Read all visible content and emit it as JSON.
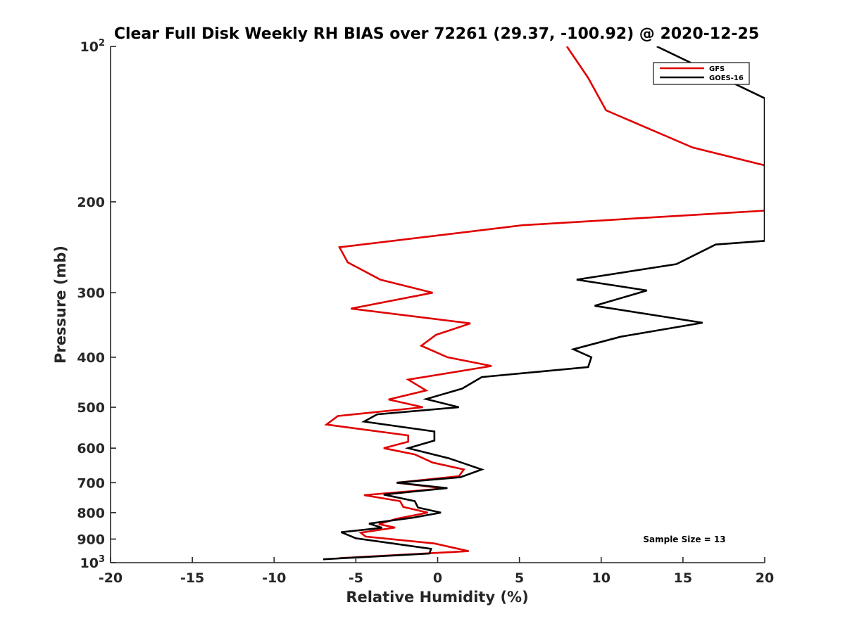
{
  "chart_data": {
    "type": "line",
    "title": "Clear Full Disk Weekly RH BIAS over 72261 (29.37, -100.92) @ 2020-12-25",
    "xlabel": "Relative Humidity (%)",
    "ylabel": "Pressure (mb)",
    "xlim": [
      -20,
      20
    ],
    "ylim": [
      100,
      1000
    ],
    "y_scale": "log",
    "y_reversed": true,
    "grid": false,
    "legend_position": "top-right",
    "x_ticks": [
      {
        "value": -20,
        "label": "-20"
      },
      {
        "value": -15,
        "label": "-15"
      },
      {
        "value": -10,
        "label": "-10"
      },
      {
        "value": -5,
        "label": "-5"
      },
      {
        "value": 0,
        "label": "0"
      },
      {
        "value": 5,
        "label": "5"
      },
      {
        "value": 10,
        "label": "10"
      },
      {
        "value": 15,
        "label": "15"
      },
      {
        "value": 20,
        "label": "20"
      }
    ],
    "y_ticks": [
      {
        "value": 100,
        "base": "10",
        "exp": "2"
      },
      {
        "value": 200,
        "base": "200",
        "exp": ""
      },
      {
        "value": 300,
        "base": "300",
        "exp": ""
      },
      {
        "value": 400,
        "base": "400",
        "exp": ""
      },
      {
        "value": 500,
        "base": "500",
        "exp": ""
      },
      {
        "value": 600,
        "base": "600",
        "exp": ""
      },
      {
        "value": 700,
        "base": "700",
        "exp": ""
      },
      {
        "value": 800,
        "base": "800",
        "exp": ""
      },
      {
        "value": 900,
        "base": "900",
        "exp": ""
      },
      {
        "value": 1000,
        "base": "10",
        "exp": "3"
      }
    ],
    "series": [
      {
        "name": "GFS",
        "color": "#e00000",
        "points": [
          [
            7.9,
            100
          ],
          [
            9.2,
            115
          ],
          [
            10.3,
            133
          ],
          [
            15.6,
            157
          ],
          [
            20,
            170
          ],
          [
            20,
            208
          ],
          [
            5.2,
            222
          ],
          [
            -6,
            245
          ],
          [
            -5.5,
            262
          ],
          [
            -3.5,
            283
          ],
          [
            -0.3,
            300
          ],
          [
            -5.3,
            322
          ],
          [
            2,
            344
          ],
          [
            -0.1,
            362
          ],
          [
            -1,
            380
          ],
          [
            0.6,
            400
          ],
          [
            3.3,
            416
          ],
          [
            -1.8,
            442
          ],
          [
            -0.7,
            464
          ],
          [
            -3,
            483
          ],
          [
            -0.9,
            500
          ],
          [
            -6.1,
            520
          ],
          [
            -6.8,
            540
          ],
          [
            -1.8,
            567
          ],
          [
            -1.8,
            583
          ],
          [
            -3.3,
            600
          ],
          [
            -1.4,
            617
          ],
          [
            -0.3,
            640
          ],
          [
            1.6,
            660
          ],
          [
            1.3,
            680
          ],
          [
            -2.5,
            700
          ],
          [
            0.4,
            718
          ],
          [
            -4.5,
            740
          ],
          [
            -2.3,
            760
          ],
          [
            -2.1,
            780
          ],
          [
            -0.6,
            800
          ],
          [
            -2.5,
            822
          ],
          [
            -3.6,
            842
          ],
          [
            -2.6,
            855
          ],
          [
            -4.7,
            875
          ],
          [
            -4.4,
            890
          ],
          [
            -0.2,
            918
          ],
          [
            1.9,
            950
          ],
          [
            -6,
            980
          ]
        ]
      },
      {
        "name": "GOES-16",
        "color": "#000000",
        "points": [
          [
            13.4,
            100
          ],
          [
            20,
            126
          ],
          [
            20,
            238
          ],
          [
            17,
            242
          ],
          [
            14.6,
            264
          ],
          [
            8.5,
            283
          ],
          [
            12.8,
            297
          ],
          [
            9.6,
            318
          ],
          [
            16.2,
            343
          ],
          [
            11.2,
            365
          ],
          [
            8.3,
            386
          ],
          [
            9.4,
            400
          ],
          [
            9.2,
            418
          ],
          [
            2.7,
            437
          ],
          [
            1.5,
            460
          ],
          [
            -0.7,
            482
          ],
          [
            1.3,
            500
          ],
          [
            -3.7,
            516
          ],
          [
            -4.5,
            533
          ],
          [
            -0.2,
            557
          ],
          [
            -0.2,
            580
          ],
          [
            -1.8,
            600
          ],
          [
            0.7,
            628
          ],
          [
            2.7,
            660
          ],
          [
            1.4,
            683
          ],
          [
            -2.5,
            700
          ],
          [
            0.6,
            717
          ],
          [
            -3.3,
            738
          ],
          [
            -1.4,
            760
          ],
          [
            -1.2,
            782
          ],
          [
            0.2,
            800
          ],
          [
            -1.5,
            818
          ],
          [
            -4.2,
            840
          ],
          [
            -3.4,
            856
          ],
          [
            -5.9,
            873
          ],
          [
            -5,
            897
          ],
          [
            -0.4,
            940
          ],
          [
            -0.5,
            960
          ],
          [
            -7,
            985
          ]
        ]
      }
    ],
    "annotations": [
      {
        "text": "Sample Size = 13",
        "position": "bottom-right"
      }
    ]
  }
}
